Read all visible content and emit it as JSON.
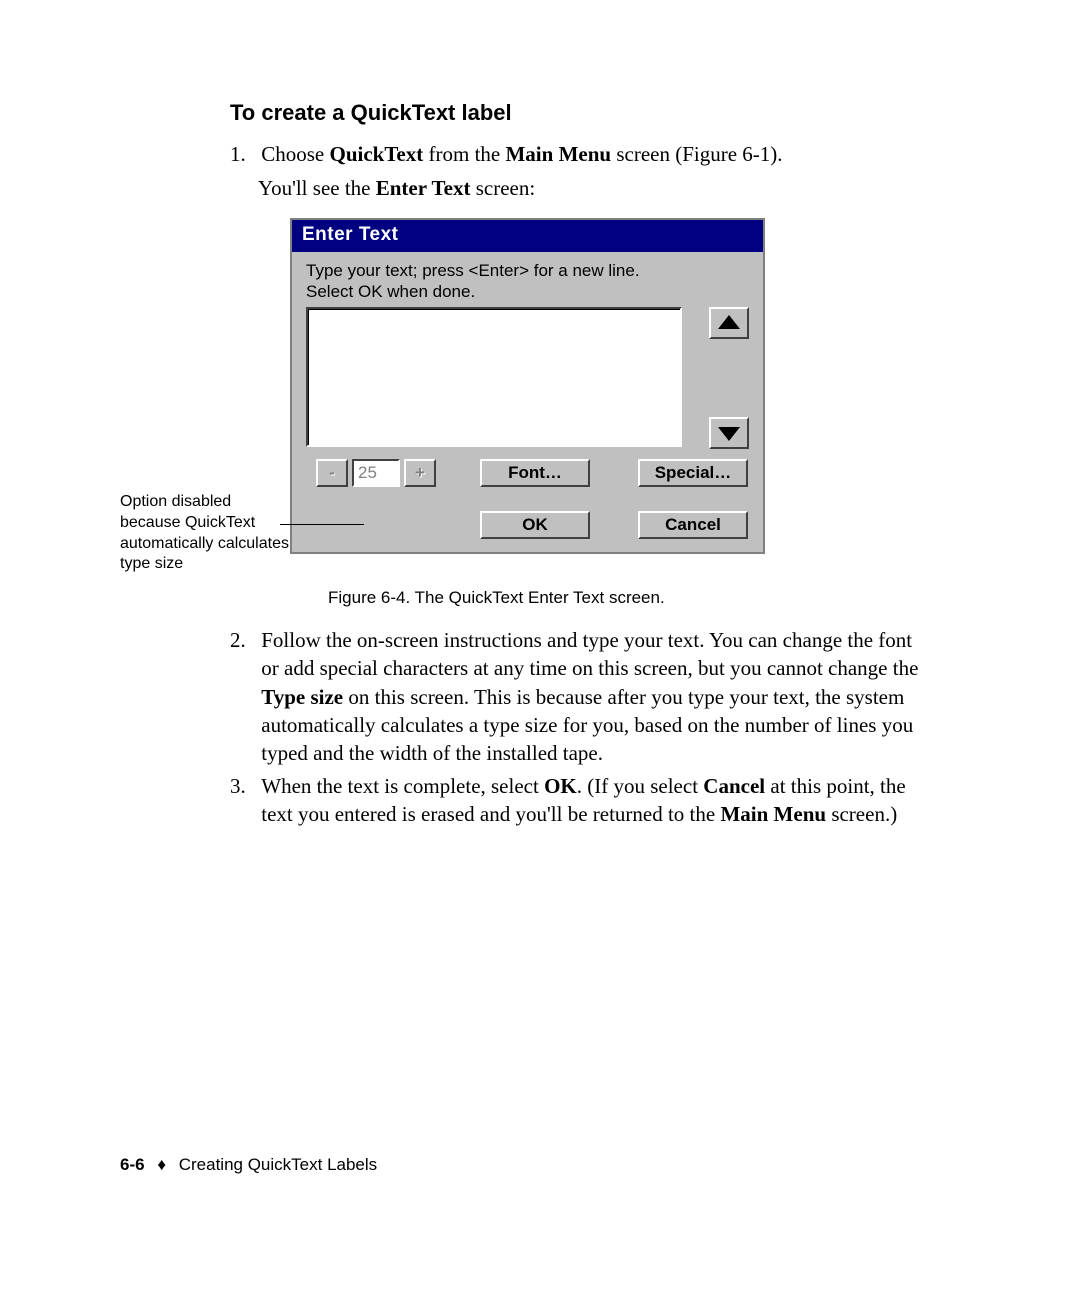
{
  "heading": "To create a QuickText label",
  "step1": {
    "num": "1.",
    "pre": "Choose ",
    "b1": "QuickText",
    "mid": " from the ",
    "b2": "Main Menu",
    "post": " screen (Figure 6-1).",
    "line2_pre": "You'll see the ",
    "line2_b": "Enter Text",
    "line2_post": " screen:"
  },
  "dialog": {
    "title": "Enter Text",
    "instr1": "Type your text; press <Enter> for a new line.",
    "instr2": "Select OK when done.",
    "size_value": "25",
    "minus": "-",
    "plus": "+",
    "font": "Font…",
    "special": "Special…",
    "ok": "OK",
    "cancel": "Cancel"
  },
  "callout": "Option disabled because QuickText automatically calculates type size",
  "figcaption": "Figure 6-4. The QuickText Enter Text screen.",
  "step2": {
    "num": "2.",
    "t1": "Follow the on-screen instructions and type your text. You can change the font or add special characters at any time on this screen, but you cannot change the ",
    "b1": "Type size",
    "t2": " on this screen. This is because after you type your text, the system automatically calculates a type size for you, based on the number of lines you typed and the width of the installed tape."
  },
  "step3": {
    "num": "3.",
    "t1": "When the text is complete, select ",
    "b1": "OK",
    "t2": ". (If you select ",
    "b2": "Cancel",
    "t3": " at this point, the text you entered is erased and you'll be returned to the ",
    "b3": "Main Menu",
    "t4": " screen.)"
  },
  "footer": {
    "page": "6-6",
    "diamond": "♦",
    "title": "Creating QuickText Labels"
  }
}
